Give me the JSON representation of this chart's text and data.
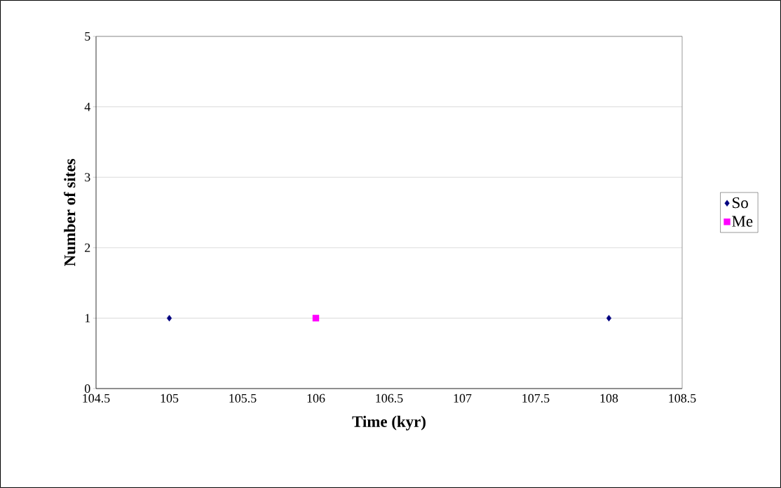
{
  "chart_data": {
    "type": "scatter",
    "xlabel": "Time (kyr)",
    "ylabel": "Number of sites",
    "xlim": [
      104.5,
      108.5
    ],
    "xticks": [
      104.5,
      105,
      105.5,
      106,
      106.5,
      107,
      107.5,
      108,
      108.5
    ],
    "ylim": [
      0,
      5
    ],
    "yticks": [
      0,
      1,
      2,
      3,
      4,
      5
    ],
    "grid": "y",
    "legend": "right",
    "series": [
      {
        "name": "So",
        "color": "#000080",
        "marker": "diamond",
        "x": [
          105,
          108
        ],
        "values": [
          1,
          1
        ]
      },
      {
        "name": "Me",
        "color": "#ff00ff",
        "marker": "square",
        "x": [
          106
        ],
        "values": [
          1
        ]
      }
    ]
  }
}
